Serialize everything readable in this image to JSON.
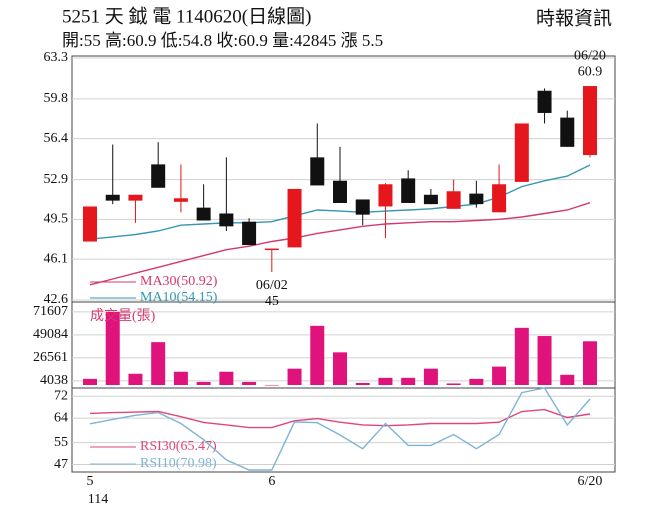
{
  "header": {
    "title": "5251  天 鉞 電 1140620(日線圖)",
    "source": "時報資訊",
    "quote": "開:55 高:60.9 低:54.8 收:60.9 量:42845 漲 5.5"
  },
  "chart_data": [
    {
      "type": "candlestick",
      "categories": [
        "5",
        null,
        null,
        null,
        null,
        null,
        null,
        null,
        "6",
        null,
        null,
        null,
        null,
        null,
        null,
        null,
        null,
        null,
        null,
        null,
        null,
        null,
        "6/20"
      ],
      "year_label": "114",
      "open": [
        47.6,
        51.6,
        51.1,
        54.2,
        51.0,
        50.5,
        50.0,
        49.3,
        47.0,
        47.1,
        54.8,
        52.8,
        51.2,
        50.6,
        53.0,
        51.6,
        50.4,
        51.7,
        50.1,
        52.7,
        60.5,
        58.2,
        55
      ],
      "high": [
        50.6,
        55.9,
        51.6,
        56.1,
        54.2,
        52.5,
        54.8,
        49.6,
        47.0,
        52.1,
        57.7,
        55.7,
        51.2,
        52.6,
        53.7,
        52.1,
        52.9,
        52.8,
        54.2,
        57.7,
        60.7,
        58.8,
        60.9
      ],
      "low": [
        47.6,
        50.8,
        49.2,
        52.2,
        50.1,
        49.4,
        48.5,
        47.3,
        45,
        47.1,
        52.4,
        50.9,
        49.0,
        47.9,
        50.9,
        50.8,
        50.4,
        50.5,
        50.1,
        52.7,
        57.7,
        55.7,
        54.8
      ],
      "close": [
        50.6,
        51.1,
        51.6,
        52.2,
        51.3,
        49.4,
        48.9,
        47.3,
        47.0,
        52.1,
        52.4,
        50.9,
        49.9,
        52.5,
        50.9,
        50.8,
        51.9,
        50.8,
        52.5,
        57.7,
        58.6,
        55.7,
        60.9
      ],
      "up_color": "#e5161c",
      "down_color": "#111111",
      "series": [
        {
          "name": "MA30(50.92)",
          "color": "#d3386f",
          "values": [
            43.9,
            44.4,
            44.9,
            45.4,
            45.9,
            46.4,
            46.9,
            47.2,
            47.6,
            47.9,
            48.3,
            48.6,
            48.9,
            49.1,
            49.2,
            49.3,
            49.3,
            49.4,
            49.5,
            49.7,
            50.0,
            50.3,
            50.92
          ]
        },
        {
          "name": "MA10(54.15)",
          "color": "#3597b3",
          "values": [
            47.8,
            48.0,
            48.2,
            48.5,
            49.0,
            49.1,
            49.2,
            49.2,
            49.3,
            49.8,
            50.3,
            50.2,
            50.1,
            50.2,
            50.3,
            50.4,
            50.6,
            50.8,
            51.4,
            52.3,
            52.8,
            53.2,
            54.15
          ]
        }
      ],
      "annotations": [
        {
          "text": "06/20",
          "value": 60.9,
          "of": "high"
        },
        {
          "text": "06/02",
          "value": 45,
          "of": "low"
        }
      ],
      "ylim": [
        42.6,
        63.3
      ],
      "yticks": [
        42.6,
        46.1,
        49.5,
        52.9,
        56.4,
        59.8,
        63.3
      ],
      "grid": true
    },
    {
      "type": "bar",
      "title": "成交量(張)",
      "title_color": "#d3386f",
      "color": "#e0137c",
      "values": [
        6000,
        71607,
        11000,
        42000,
        13000,
        3000,
        13000,
        3000,
        45,
        16000,
        58000,
        32000,
        2000,
        7000,
        7000,
        16000,
        1500,
        6000,
        18000,
        56000,
        48000,
        10000,
        42845
      ],
      "ylim": [
        0,
        73500
      ],
      "yticks": [
        4038,
        26561,
        49084,
        71607
      ],
      "grid": true
    },
    {
      "type": "line",
      "series": [
        {
          "name": "RSI30(65.47)",
          "color": "#e0457b",
          "values": [
            65.7,
            66.0,
            66.2,
            66.4,
            64.5,
            62.4,
            61.5,
            60.5,
            60.5,
            63.0,
            63.8,
            62.5,
            61.5,
            61.2,
            61.5,
            62.0,
            62.0,
            62.0,
            62.5,
            66.4,
            67.1,
            64.2,
            65.47
          ]
        },
        {
          "name": "RSI10(70.98)",
          "color": "#7db4d8",
          "values": [
            61.9,
            63.5,
            65.0,
            66.0,
            62.0,
            56.1,
            48.7,
            45.0,
            45.0,
            62.6,
            62.3,
            57.8,
            52.8,
            62.0,
            54.0,
            54.0,
            58.0,
            52.8,
            58.0,
            73.3,
            75.0,
            61.5,
            70.98
          ]
        }
      ],
      "ylim": [
        45,
        75
      ],
      "yticks": [
        47,
        55,
        64,
        72
      ],
      "grid": true
    }
  ]
}
